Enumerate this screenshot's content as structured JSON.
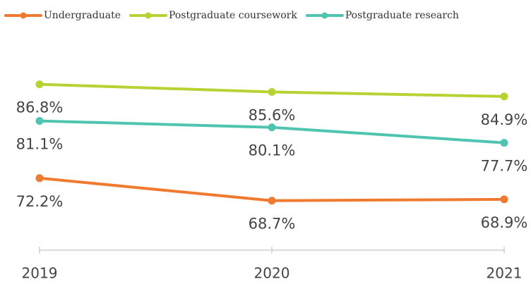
{
  "chart_data": {
    "type": "line",
    "categories": [
      "2019",
      "2020",
      "2021"
    ],
    "series": [
      {
        "name": "Undergraduate",
        "color": "#f07a30",
        "values": [
          72.2,
          68.7,
          68.9
        ],
        "value_labels": [
          "72.2%",
          "68.7%",
          "68.9%"
        ]
      },
      {
        "name": "Postgraduate coursework",
        "color": "#b6d334",
        "values": [
          86.8,
          85.6,
          84.9
        ],
        "value_labels": [
          "86.8%",
          "85.6%",
          "84.9%"
        ]
      },
      {
        "name": "Postgraduate research",
        "color": "#4fc4b1",
        "values": [
          81.1,
          80.1,
          77.7
        ],
        "value_labels": [
          "81.1%",
          "80.1%",
          "77.7%"
        ]
      }
    ],
    "ylim": [
      61,
      93
    ],
    "legend": "top"
  }
}
